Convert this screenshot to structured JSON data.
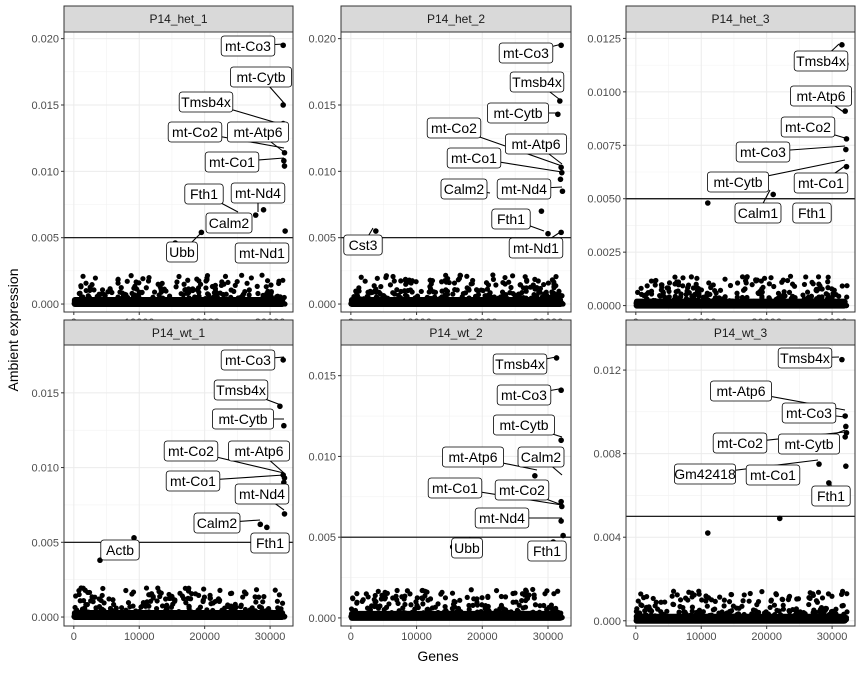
{
  "figure": {
    "xlabel": "Genes",
    "ylabel": "Ambient expression"
  },
  "chart_data": [
    {
      "type": "scatter",
      "title": "P14_het_1",
      "xlim": [
        -1500,
        33500
      ],
      "ylim": [
        -0.0006,
        0.0205
      ],
      "x_ticks": [
        0,
        10000,
        20000,
        30000
      ],
      "x_tick_labels": [
        "0",
        "10000",
        "20000",
        "30000"
      ],
      "y_ticks": [
        0.0,
        0.005,
        0.01,
        0.015,
        0.02
      ],
      "y_tick_labels": [
        "0.000",
        "0.005",
        "0.010",
        "0.015",
        "0.020"
      ],
      "threshold": 0.005,
      "points": [
        [
          32000,
          0.0195
        ],
        [
          32000,
          0.015
        ],
        [
          32000,
          0.0136
        ],
        [
          32200,
          0.0114
        ],
        [
          32100,
          0.0108
        ],
        [
          32200,
          0.0104
        ],
        [
          29000,
          0.0071
        ],
        [
          27800,
          0.0067
        ],
        [
          19500,
          0.0054
        ],
        [
          32300,
          0.0055
        ],
        [
          15500,
          0.0046
        ],
        [
          32000,
          0.0044
        ]
      ],
      "labels": [
        "mt-Co3",
        "mt-Cytb",
        "Tmsb4x",
        "mt-Co2",
        "mt-Atp6",
        "mt-Co1",
        "Fth1",
        "mt-Nd4",
        "Calm2",
        "Ubb",
        "mt-Nd1"
      ]
    },
    {
      "type": "scatter",
      "title": "P14_het_2",
      "xlim": [
        -1500,
        33500
      ],
      "ylim": [
        -0.0006,
        0.0205
      ],
      "x_ticks": [
        0,
        10000,
        20000,
        30000
      ],
      "x_tick_labels": [
        "0",
        "10000",
        "20000",
        "30000"
      ],
      "y_ticks": [
        0.0,
        0.005,
        0.01,
        0.015,
        0.02
      ],
      "y_tick_labels": [
        "0.000",
        "0.005",
        "0.010",
        "0.015",
        "0.020"
      ],
      "threshold": 0.005,
      "points": [
        [
          32000,
          0.0195
        ],
        [
          31800,
          0.0153
        ],
        [
          31500,
          0.0143
        ],
        [
          32000,
          0.0103
        ],
        [
          32100,
          0.0099
        ],
        [
          31900,
          0.0094
        ],
        [
          32200,
          0.0085
        ],
        [
          29000,
          0.007
        ],
        [
          30000,
          0.0053
        ],
        [
          3800,
          0.0055
        ],
        [
          32000,
          0.0054
        ]
      ],
      "labels": [
        "mt-Co3",
        "Tmsb4x",
        "mt-Cytb",
        "mt-Co2",
        "mt-Atp6",
        "mt-Co1",
        "Calm2",
        "mt-Nd4",
        "Fth1",
        "Cst3",
        "mt-Nd1"
      ]
    },
    {
      "type": "scatter",
      "title": "P14_het_3",
      "xlim": [
        -1500,
        33500
      ],
      "ylim": [
        -0.0003,
        0.0128
      ],
      "x_ticks": [
        0,
        10000,
        20000,
        30000
      ],
      "x_tick_labels": [
        "0",
        "10000",
        "20000",
        "30000"
      ],
      "y_ticks": [
        0.0,
        0.0025,
        0.005,
        0.0075,
        0.01,
        0.0125
      ],
      "y_tick_labels": [
        "0.0000",
        "0.0025",
        "0.0050",
        "0.0075",
        "0.0100",
        "0.0125"
      ],
      "threshold": 0.005,
      "points": [
        [
          31500,
          0.0122
        ],
        [
          32100,
          0.0113
        ],
        [
          32000,
          0.0091
        ],
        [
          32200,
          0.0078
        ],
        [
          32100,
          0.0073
        ],
        [
          32200,
          0.0065
        ],
        [
          21000,
          0.0052
        ],
        [
          30500,
          0.0054
        ],
        [
          11000,
          0.0048
        ],
        [
          28500,
          0.0044
        ]
      ],
      "labels": [
        "Tmsb4x",
        "mt-Atp6",
        "mt-Co2",
        "mt-Co3",
        "mt-Cytb",
        "mt-Co1",
        "Calm1",
        "Fth1"
      ]
    },
    {
      "type": "scatter",
      "title": "P14_wt_1",
      "xlim": [
        -1500,
        33500
      ],
      "ylim": [
        -0.0006,
        0.0182
      ],
      "x_ticks": [
        0,
        10000,
        20000,
        30000
      ],
      "x_tick_labels": [
        "0",
        "10000",
        "20000",
        "30000"
      ],
      "y_ticks": [
        0.0,
        0.005,
        0.01,
        0.015
      ],
      "y_tick_labels": [
        "0.000",
        "0.005",
        "0.010",
        "0.015"
      ],
      "threshold": 0.005,
      "points": [
        [
          32000,
          0.0172
        ],
        [
          31500,
          0.0141
        ],
        [
          32100,
          0.0128
        ],
        [
          32000,
          0.0095
        ],
        [
          32200,
          0.0093
        ],
        [
          32100,
          0.009
        ],
        [
          32200,
          0.0069
        ],
        [
          28500,
          0.0062
        ],
        [
          29500,
          0.006
        ],
        [
          9200,
          0.0053
        ],
        [
          4000,
          0.0038
        ]
      ],
      "labels": [
        "mt-Co3",
        "Tmsb4x",
        "mt-Cytb",
        "mt-Co2",
        "mt-Atp6",
        "mt-Co1",
        "mt-Nd4",
        "Calm2",
        "Fth1",
        "Actb"
      ]
    },
    {
      "type": "scatter",
      "title": "P14_wt_2",
      "xlim": [
        -1500,
        33500
      ],
      "ylim": [
        -0.0005,
        0.0169
      ],
      "x_ticks": [
        0,
        10000,
        20000,
        30000
      ],
      "x_tick_labels": [
        "0",
        "10000",
        "20000",
        "30000"
      ],
      "y_ticks": [
        0.0,
        0.005,
        0.01,
        0.015
      ],
      "y_tick_labels": [
        "0.000",
        "0.005",
        "0.010",
        "0.015"
      ],
      "threshold": 0.005,
      "points": [
        [
          31300,
          0.0161
        ],
        [
          32000,
          0.0141
        ],
        [
          32000,
          0.011
        ],
        [
          28000,
          0.0088
        ],
        [
          32000,
          0.0072
        ],
        [
          32100,
          0.0069
        ],
        [
          32000,
          0.006
        ],
        [
          30800,
          0.0047
        ],
        [
          15500,
          0.0044
        ],
        [
          32300,
          0.0051
        ]
      ],
      "labels": [
        "Tmsb4x",
        "mt-Co3",
        "mt-Cytb",
        "mt-Atp6",
        "Calm2",
        "mt-Co1",
        "mt-Co2",
        "mt-Nd4",
        "Ubb",
        "Fth1"
      ]
    },
    {
      "type": "scatter",
      "title": "P14_wt_3",
      "xlim": [
        -1500,
        33500
      ],
      "ylim": [
        -0.00025,
        0.0132
      ],
      "x_ticks": [
        0,
        10000,
        20000,
        30000
      ],
      "x_tick_labels": [
        "0",
        "10000",
        "20000",
        "30000"
      ],
      "y_ticks": [
        0.0,
        0.004,
        0.008,
        0.012
      ],
      "y_tick_labels": [
        "0.000",
        "0.004",
        "0.008",
        "0.012"
      ],
      "threshold": 0.005,
      "points": [
        [
          31500,
          0.0125
        ],
        [
          32000,
          0.0098
        ],
        [
          32100,
          0.0093
        ],
        [
          32200,
          0.009
        ],
        [
          32000,
          0.0088
        ],
        [
          32100,
          0.0074
        ],
        [
          28000,
          0.0075
        ],
        [
          29500,
          0.0066
        ],
        [
          22000,
          0.0049
        ],
        [
          11000,
          0.0042
        ]
      ],
      "labels": [
        "Tmsb4x",
        "mt-Atp6",
        "mt-Co3",
        "mt-Co2",
        "mt-Cytb",
        "Gm42418",
        "mt-Co1",
        "Fth1"
      ]
    }
  ]
}
